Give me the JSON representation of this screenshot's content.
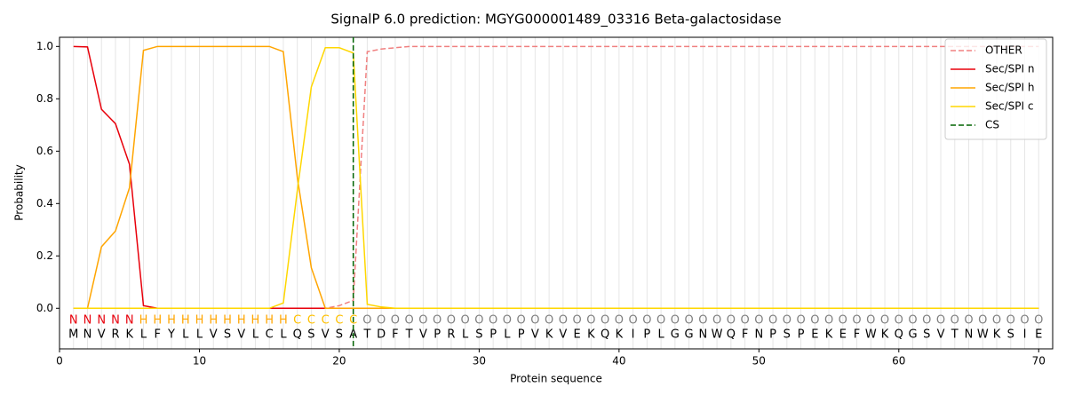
{
  "chart_data": {
    "type": "line",
    "title": "SignalP 6.0 prediction: MGYG000001489_03316 Beta-galactosidase",
    "xlabel": "Protein sequence",
    "ylabel": "Probability",
    "x": [
      1,
      2,
      3,
      4,
      5,
      6,
      7,
      8,
      9,
      10,
      11,
      12,
      13,
      14,
      15,
      16,
      17,
      18,
      19,
      20,
      21,
      22,
      23,
      24,
      25,
      26,
      27,
      28,
      29,
      30,
      31,
      32,
      33,
      34,
      35,
      36,
      37,
      38,
      39,
      40,
      41,
      42,
      43,
      44,
      45,
      46,
      47,
      48,
      49,
      50,
      51,
      52,
      53,
      54,
      55,
      56,
      57,
      58,
      59,
      60,
      61,
      62,
      63,
      64,
      65,
      66,
      67,
      68,
      69,
      70
    ],
    "series": [
      {
        "name": "OTHER",
        "color": "#f08080",
        "linestyle": "dashed",
        "values": [
          0,
          0,
          0,
          0,
          0,
          0,
          0,
          0,
          0,
          0,
          0,
          0,
          0,
          0,
          0,
          0,
          0,
          0,
          0,
          0.01,
          0.03,
          0.98,
          0.99,
          0.995,
          1,
          1,
          1,
          1,
          1,
          1,
          1,
          1,
          1,
          1,
          1,
          1,
          1,
          1,
          1,
          1,
          1,
          1,
          1,
          1,
          1,
          1,
          1,
          1,
          1,
          1,
          1,
          1,
          1,
          1,
          1,
          1,
          1,
          1,
          1,
          1,
          1,
          1,
          1,
          1,
          1,
          1,
          1,
          1,
          1,
          1
        ]
      },
      {
        "name": "Sec/SPI n",
        "color": "#e8000b",
        "linestyle": "solid",
        "values": [
          1,
          0.998,
          0.76,
          0.705,
          0.55,
          0.01,
          0,
          0,
          0,
          0,
          0,
          0,
          0,
          0,
          0,
          0,
          0,
          0,
          0,
          0,
          0,
          0,
          0,
          0,
          0,
          0,
          0,
          0,
          0,
          0,
          0,
          0,
          0,
          0,
          0,
          0,
          0,
          0,
          0,
          0,
          0,
          0,
          0,
          0,
          0,
          0,
          0,
          0,
          0,
          0,
          0,
          0,
          0,
          0,
          0,
          0,
          0,
          0,
          0,
          0,
          0,
          0,
          0,
          0,
          0,
          0,
          0,
          0,
          0,
          0
        ]
      },
      {
        "name": "Sec/SPI h",
        "color": "#ffa500",
        "linestyle": "solid",
        "values": [
          0,
          0,
          0.235,
          0.295,
          0.46,
          0.985,
          1,
          1,
          1,
          1,
          1,
          1,
          1,
          1,
          1,
          0.98,
          0.5,
          0.155,
          0,
          0,
          0,
          0,
          0,
          0,
          0,
          0,
          0,
          0,
          0,
          0,
          0,
          0,
          0,
          0,
          0,
          0,
          0,
          0,
          0,
          0,
          0,
          0,
          0,
          0,
          0,
          0,
          0,
          0,
          0,
          0,
          0,
          0,
          0,
          0,
          0,
          0,
          0,
          0,
          0,
          0,
          0,
          0,
          0,
          0,
          0,
          0,
          0,
          0,
          0,
          0
        ]
      },
      {
        "name": "Sec/SPI c",
        "color": "#ffd700",
        "linestyle": "solid",
        "values": [
          0,
          0,
          0,
          0,
          0,
          0,
          0,
          0,
          0,
          0,
          0,
          0,
          0,
          0,
          0,
          0.02,
          0.45,
          0.845,
          0.995,
          0.995,
          0.975,
          0.015,
          0.005,
          0,
          0,
          0,
          0,
          0,
          0,
          0,
          0,
          0,
          0,
          0,
          0,
          0,
          0,
          0,
          0,
          0,
          0,
          0,
          0,
          0,
          0,
          0,
          0,
          0,
          0,
          0,
          0,
          0,
          0,
          0,
          0,
          0,
          0,
          0,
          0,
          0,
          0,
          0,
          0,
          0,
          0,
          0,
          0,
          0,
          0,
          0
        ]
      }
    ],
    "markers": [
      {
        "name": "CS",
        "color": "#006400",
        "linestyle": "dashed",
        "x": 21
      }
    ],
    "sequence": [
      "M",
      "N",
      "V",
      "R",
      "K",
      "L",
      "F",
      "Y",
      "L",
      "L",
      "V",
      "S",
      "V",
      "L",
      "C",
      "L",
      "Q",
      "S",
      "V",
      "S",
      "A",
      "T",
      "D",
      "F",
      "T",
      "V",
      "P",
      "R",
      "L",
      "S",
      "P",
      "L",
      "P",
      "V",
      "K",
      "V",
      "E",
      "K",
      "Q",
      "K",
      "I",
      "P",
      "L",
      "G",
      "G",
      "N",
      "W",
      "Q",
      "F",
      "N",
      "P",
      "S",
      "P",
      "E",
      "K",
      "E",
      "F",
      "W",
      "K",
      "Q",
      "G",
      "S",
      "V",
      "T",
      "N",
      "W",
      "K",
      "S",
      "I",
      "E"
    ],
    "regions": [
      "N",
      "N",
      "N",
      "N",
      "N",
      "H",
      "H",
      "H",
      "H",
      "H",
      "H",
      "H",
      "H",
      "H",
      "H",
      "H",
      "C",
      "C",
      "C",
      "C",
      "C",
      "O",
      "O",
      "O",
      "O",
      "O",
      "O",
      "O",
      "O",
      "O",
      "O",
      "O",
      "O",
      "O",
      "O",
      "O",
      "O",
      "O",
      "O",
      "O",
      "O",
      "O",
      "O",
      "O",
      "O",
      "O",
      "O",
      "O",
      "O",
      "O",
      "O",
      "O",
      "O",
      "O",
      "O",
      "O",
      "O",
      "O",
      "O",
      "O",
      "O",
      "O",
      "O",
      "O",
      "O",
      "O",
      "O",
      "O",
      "O",
      "O"
    ],
    "region_colors": {
      "N": "#e8000b",
      "H": "#ffa500",
      "C": "#ffc000",
      "O": "#808080"
    },
    "xlim": [
      0,
      71
    ],
    "ylim": [
      -0.155,
      1.035
    ],
    "xticks": [
      0,
      10,
      20,
      30,
      40,
      50,
      60,
      70
    ],
    "yticks": [
      {
        "value": 0,
        "label": "0.0"
      },
      0.2,
      0.4,
      0.6,
      0.8,
      {
        "value": 1,
        "label": "1.0"
      }
    ],
    "legend": "upper right"
  }
}
